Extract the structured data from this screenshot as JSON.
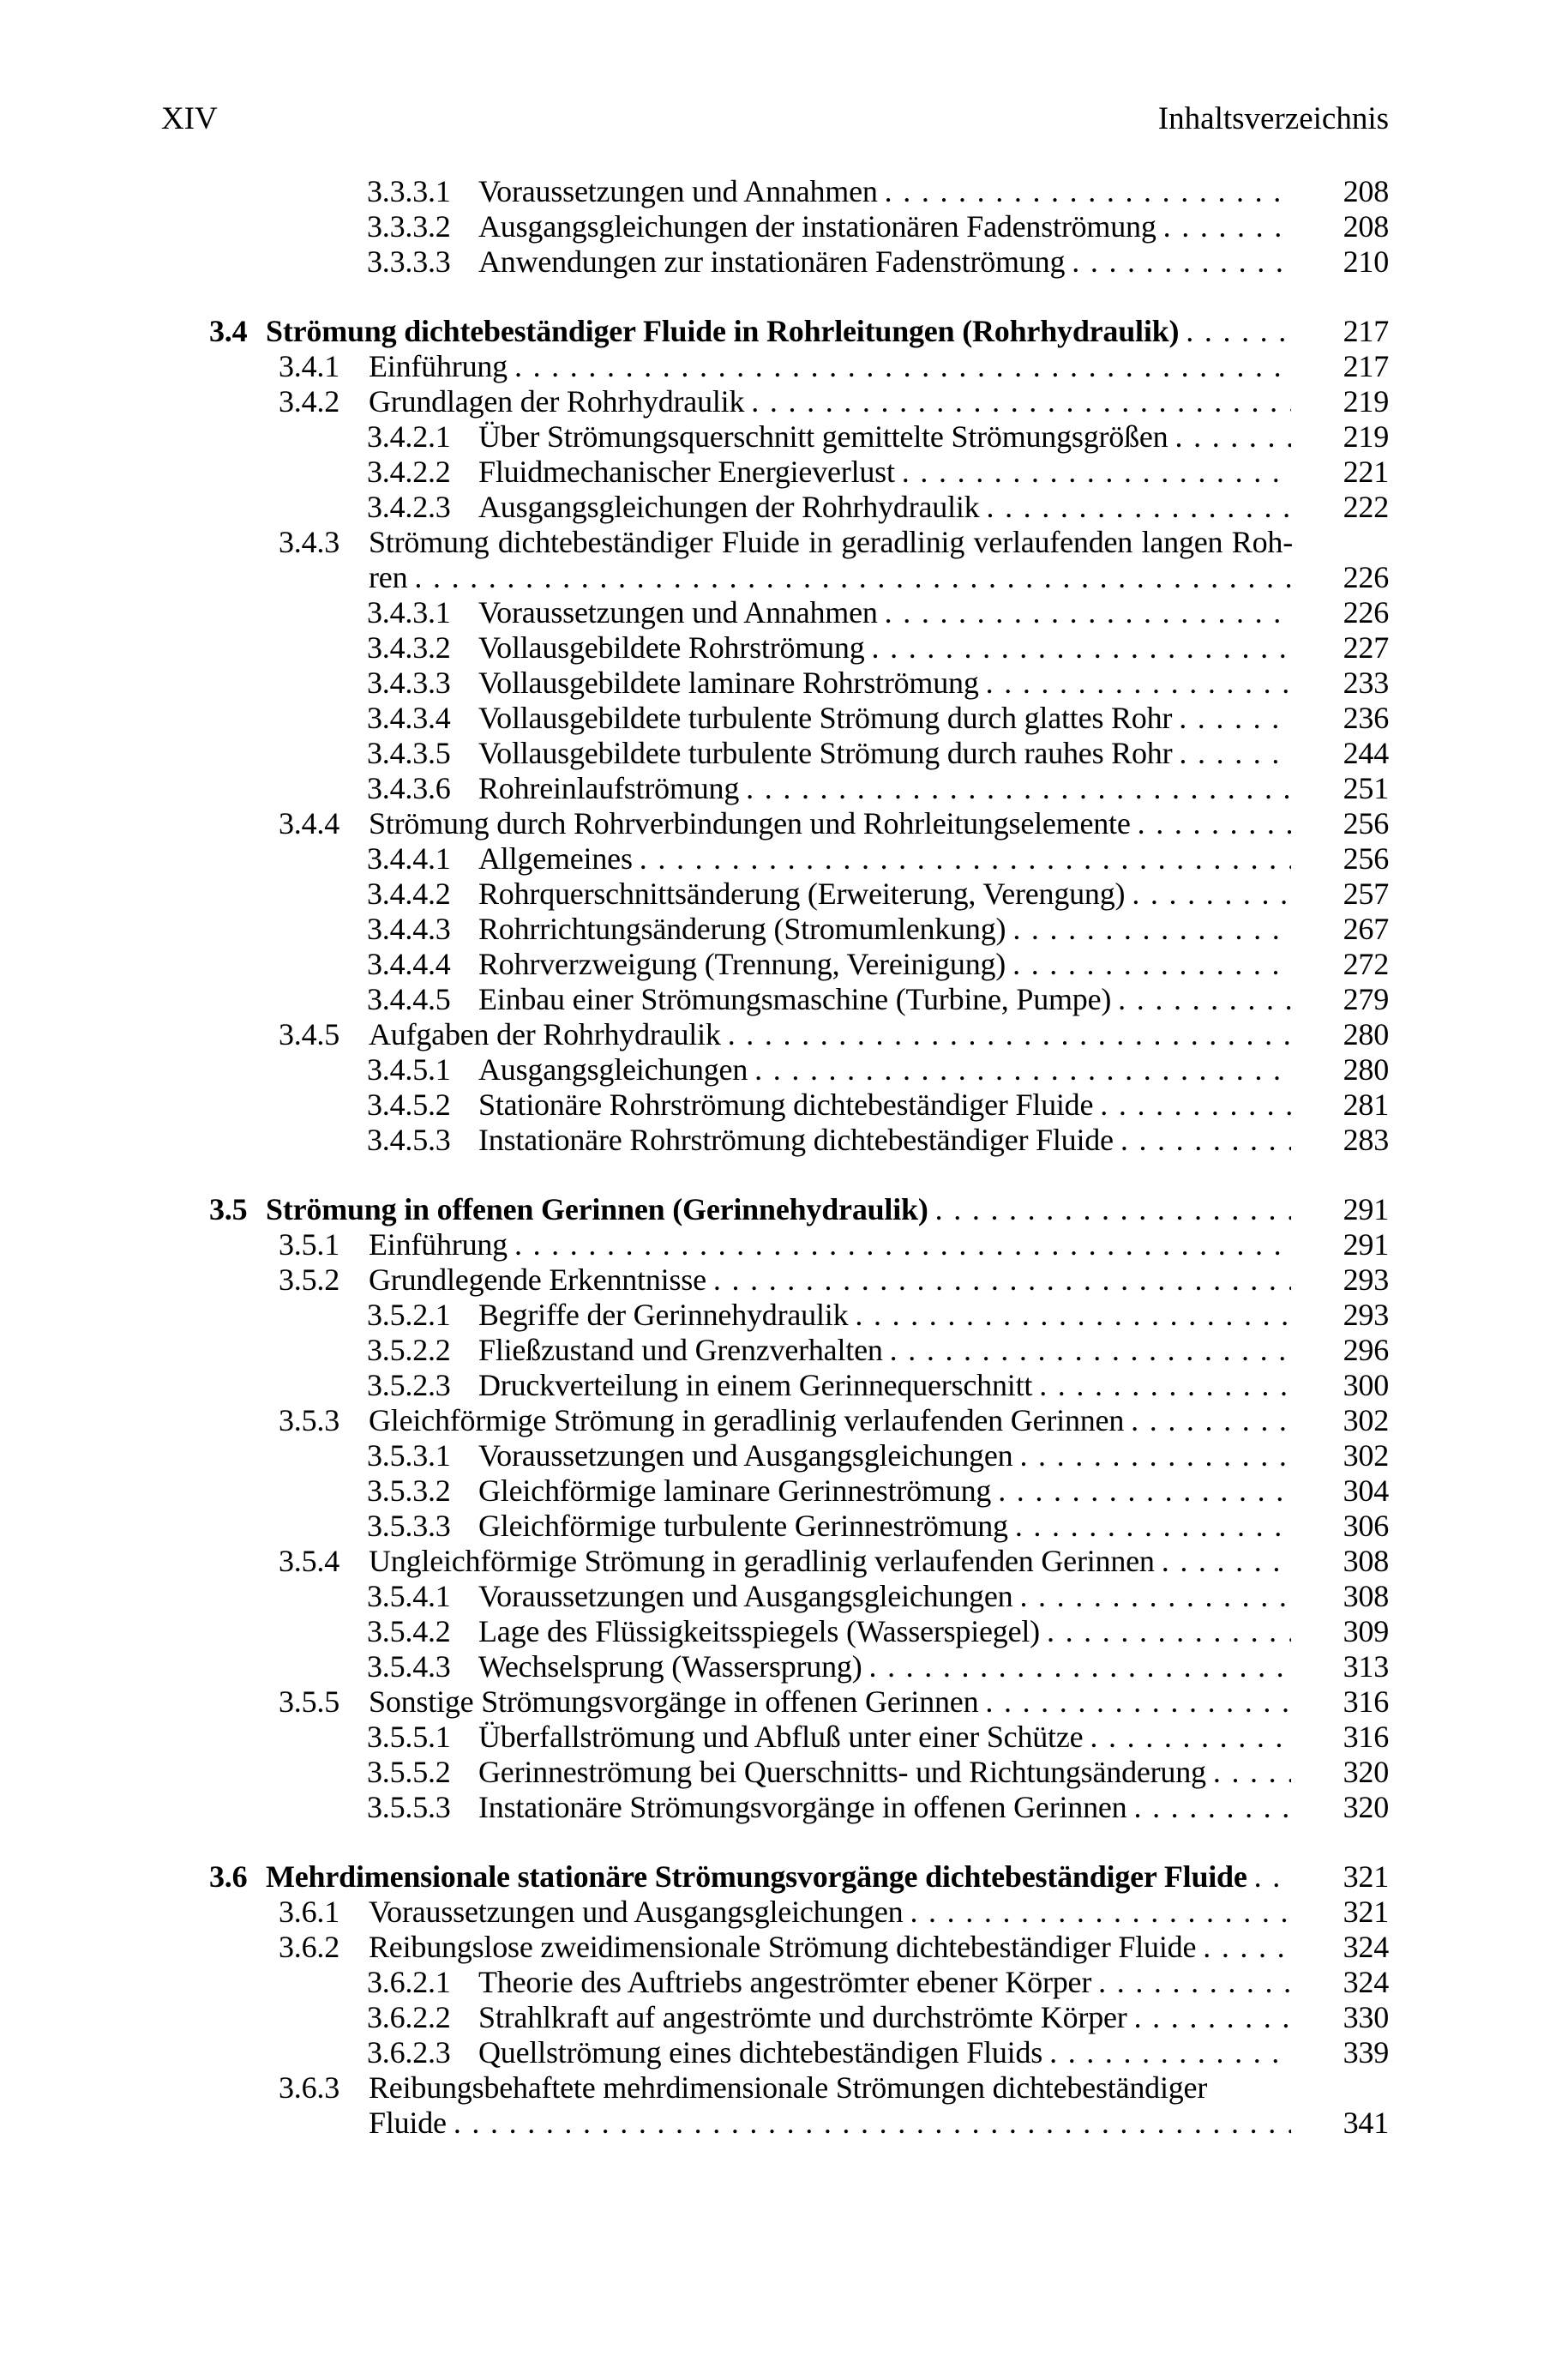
{
  "header": {
    "page_label": "XIV",
    "title": "Inhaltsverzeichnis"
  },
  "colors": {
    "text": "#000000",
    "background": "#ffffff"
  },
  "toc": {
    "entries": [
      {
        "num": "3.3.3.1",
        "text": "Voraussetzungen und Annahmen",
        "page": "208",
        "level": 3
      },
      {
        "num": "3.3.3.2",
        "text": "Ausgangsgleichungen der instationären Fadenströmung",
        "page": "208",
        "level": 3
      },
      {
        "num": "3.3.3.3",
        "text": "Anwendungen zur instationären Fadenströmung",
        "page": "210",
        "level": 3
      },
      {
        "num": "3.4",
        "text": "Strömung dichtebeständiger Fluide in Rohrleitungen (Rohrhydraulik)",
        "page": "217",
        "level": 1,
        "bold": true,
        "gap": true
      },
      {
        "num": "3.4.1",
        "text": "Einführung",
        "page": "217",
        "level": 2
      },
      {
        "num": "3.4.2",
        "text": "Grundlagen der Rohrhydraulik",
        "page": "219",
        "level": 2
      },
      {
        "num": "3.4.2.1",
        "text": "Über Strömungsquerschnitt gemittelte Strömungsgrößen",
        "page": "219",
        "level": 3
      },
      {
        "num": "3.4.2.2",
        "text": "Fluidmechanischer Energieverlust",
        "page": "221",
        "level": 3
      },
      {
        "num": "3.4.2.3",
        "text": "Ausgangsgleichungen der Rohrhydraulik",
        "page": "222",
        "level": 3
      },
      {
        "num": "3.4.3",
        "text": "Strömung dichtebeständiger Fluide in geradlinig verlaufenden langen Roh-",
        "text2": "ren",
        "page": "226",
        "level": 2,
        "justify": true
      },
      {
        "num": "3.4.3.1",
        "text": "Voraussetzungen und Annahmen",
        "page": "226",
        "level": 3
      },
      {
        "num": "3.4.3.2",
        "text": "Vollausgebildete Rohrströmung",
        "page": "227",
        "level": 3
      },
      {
        "num": "3.4.3.3",
        "text": "Vollausgebildete laminare Rohrströmung",
        "page": "233",
        "level": 3
      },
      {
        "num": "3.4.3.4",
        "text": "Vollausgebildete turbulente Strömung durch glattes Rohr",
        "page": "236",
        "level": 3
      },
      {
        "num": "3.4.3.5",
        "text": "Vollausgebildete turbulente Strömung durch rauhes Rohr",
        "page": "244",
        "level": 3
      },
      {
        "num": "3.4.3.6",
        "text": "Rohreinlaufströmung",
        "page": "251",
        "level": 3
      },
      {
        "num": "3.4.4",
        "text": "Strömung durch Rohrverbindungen und Rohrleitungselemente",
        "page": "256",
        "level": 2
      },
      {
        "num": "3.4.4.1",
        "text": "Allgemeines",
        "page": "256",
        "level": 3
      },
      {
        "num": "3.4.4.2",
        "text": "Rohrquerschnittsänderung (Erweiterung, Verengung)",
        "page": "257",
        "level": 3
      },
      {
        "num": "3.4.4.3",
        "text": "Rohrrichtungsänderung (Stromumlenkung)",
        "page": "267",
        "level": 3
      },
      {
        "num": "3.4.4.4",
        "text": "Rohrverzweigung (Trennung, Vereinigung)",
        "page": "272",
        "level": 3
      },
      {
        "num": "3.4.4.5",
        "text": "Einbau einer Strömungsmaschine (Turbine, Pumpe)",
        "page": "279",
        "level": 3
      },
      {
        "num": "3.4.5",
        "text": "Aufgaben der Rohrhydraulik",
        "page": "280",
        "level": 2
      },
      {
        "num": "3.4.5.1",
        "text": "Ausgangsgleichungen",
        "page": "280",
        "level": 3
      },
      {
        "num": "3.4.5.2",
        "text": "Stationäre Rohrströmung dichtebeständiger Fluide",
        "page": "281",
        "level": 3
      },
      {
        "num": "3.4.5.3",
        "text": "Instationäre Rohrströmung dichtebeständiger Fluide",
        "page": "283",
        "level": 3
      },
      {
        "num": "3.5",
        "text": "Strömung in offenen Gerinnen (Gerinnehydraulik)",
        "page": "291",
        "level": 1,
        "bold": true,
        "gap": true
      },
      {
        "num": "3.5.1",
        "text": "Einführung",
        "page": "291",
        "level": 2
      },
      {
        "num": "3.5.2",
        "text": "Grundlegende Erkenntnisse",
        "page": "293",
        "level": 2
      },
      {
        "num": "3.5.2.1",
        "text": "Begriffe der Gerinnehydraulik",
        "page": "293",
        "level": 3
      },
      {
        "num": "3.5.2.2",
        "text": "Fließzustand und Grenzverhalten",
        "page": "296",
        "level": 3
      },
      {
        "num": "3.5.2.3",
        "text": "Druckverteilung in einem Gerinnequerschnitt",
        "page": "300",
        "level": 3
      },
      {
        "num": "3.5.3",
        "text": "Gleichförmige Strömung in geradlinig verlaufenden Gerinnen",
        "page": "302",
        "level": 2
      },
      {
        "num": "3.5.3.1",
        "text": "Voraussetzungen und Ausgangsgleichungen",
        "page": "302",
        "level": 3
      },
      {
        "num": "3.5.3.2",
        "text": "Gleichförmige laminare Gerinneströmung",
        "page": "304",
        "level": 3
      },
      {
        "num": "3.5.3.3",
        "text": "Gleichförmige turbulente Gerinneströmung",
        "page": "306",
        "level": 3
      },
      {
        "num": "3.5.4",
        "text": "Ungleichförmige Strömung in geradlinig verlaufenden Gerinnen",
        "page": "308",
        "level": 2
      },
      {
        "num": "3.5.4.1",
        "text": "Voraussetzungen und Ausgangsgleichungen",
        "page": "308",
        "level": 3
      },
      {
        "num": "3.5.4.2",
        "text": "Lage des Flüssigkeitsspiegels (Wasserspiegel)",
        "page": "309",
        "level": 3
      },
      {
        "num": "3.5.4.3",
        "text": "Wechselsprung (Wassersprung)",
        "page": "313",
        "level": 3
      },
      {
        "num": "3.5.5",
        "text": "Sonstige Strömungsvorgänge in offenen Gerinnen",
        "page": "316",
        "level": 2
      },
      {
        "num": "3.5.5.1",
        "text": "Überfallströmung und Abfluß unter einer Schütze",
        "page": "316",
        "level": 3
      },
      {
        "num": "3.5.5.2",
        "text": "Gerinneströmung bei Querschnitts- und Richtungsänderung",
        "page": "320",
        "level": 3
      },
      {
        "num": "3.5.5.3",
        "text": "Instationäre Strömungsvorgänge in offenen Gerinnen",
        "page": "320",
        "level": 3
      },
      {
        "num": "3.6",
        "text": "Mehrdimensionale stationäre Strömungsvorgänge dichtebeständiger Fluide",
        "page": "321",
        "level": 1,
        "bold": true,
        "gap": true
      },
      {
        "num": "3.6.1",
        "text": "Voraussetzungen und Ausgangsgleichungen",
        "page": "321",
        "level": 2
      },
      {
        "num": "3.6.2",
        "text": "Reibungslose zweidimensionale Strömung dichtebeständiger Fluide",
        "page": "324",
        "level": 2
      },
      {
        "num": "3.6.2.1",
        "text": "Theorie des Auftriebs angeströmter ebener Körper",
        "page": "324",
        "level": 3
      },
      {
        "num": "3.6.2.2",
        "text": "Strahlkraft auf angeströmte und durchströmte Körper",
        "page": "330",
        "level": 3
      },
      {
        "num": "3.6.2.3",
        "text": "Quellströmung eines dichtebeständigen Fluids",
        "page": "339",
        "level": 3
      },
      {
        "num": "3.6.3",
        "text": "Reibungsbehaftete mehrdimensionale Strömungen dichtebeständiger",
        "text2": "Fluide",
        "page": "341",
        "level": 2
      }
    ]
  }
}
